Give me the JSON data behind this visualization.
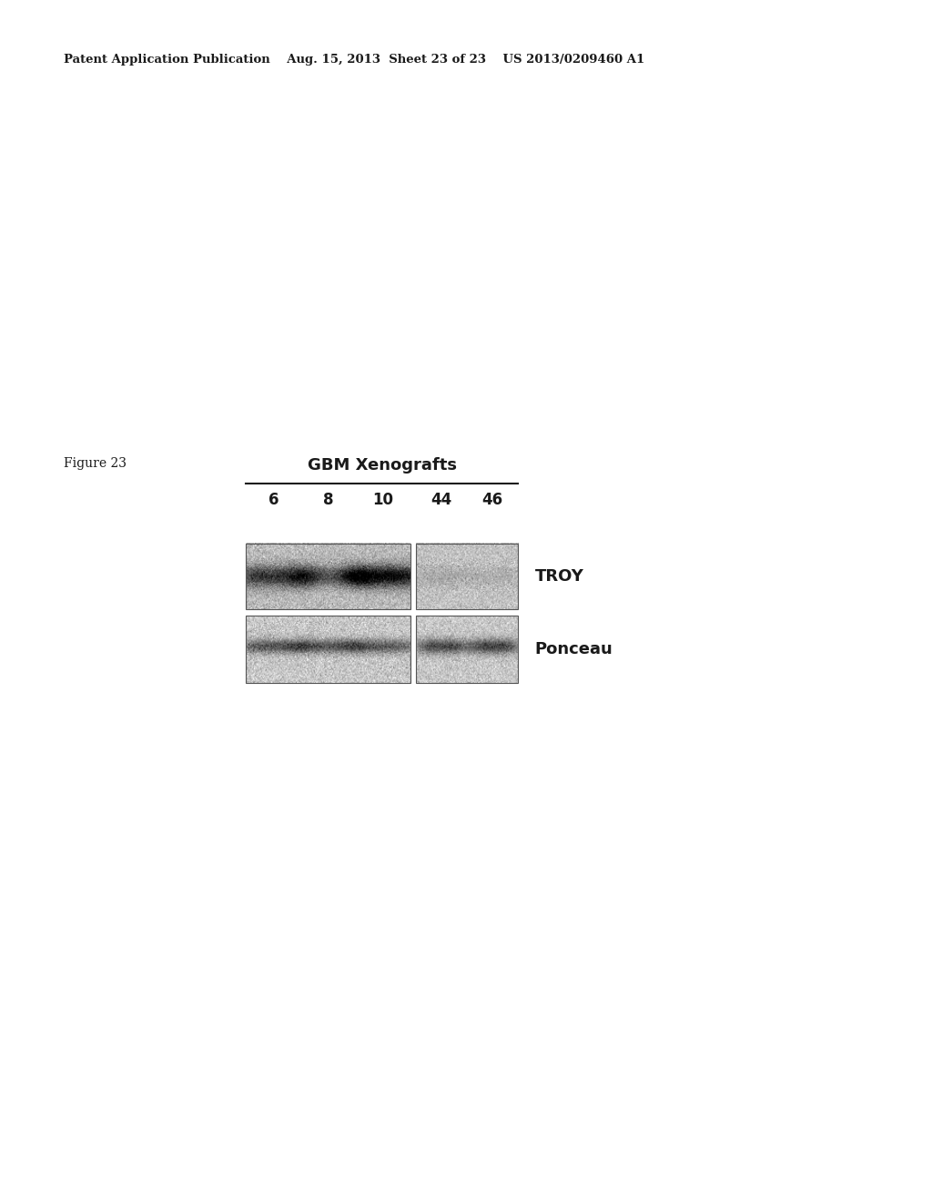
{
  "page_width": 10.24,
  "page_height": 13.2,
  "background_color": "#ffffff",
  "header_text": "Patent Application Publication    Aug. 15, 2013  Sheet 23 of 23    US 2013/0209460 A1",
  "header_fontsize": 9.5,
  "figure_label": "Figure 23",
  "figure_label_fontsize": 10,
  "title_text": "GBM Xenografts",
  "title_fontsize": 13,
  "lane_labels": [
    "6",
    "8",
    "10",
    "44",
    "46"
  ],
  "lane_label_fontsize": 12,
  "troy_label": "TROY",
  "troy_fontsize": 13,
  "ponceau_label": "Ponceau",
  "ponceau_fontsize": 13
}
